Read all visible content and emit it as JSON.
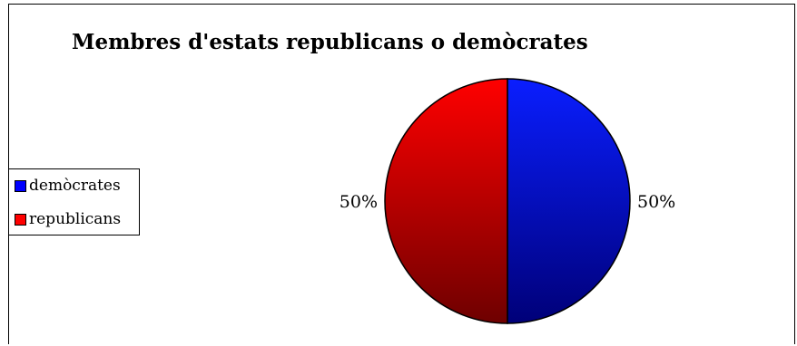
{
  "chart_data": {
    "type": "pie",
    "title": "Membres d'estats republicans o demòcrates",
    "categories": [
      "demòcrates",
      "republicans"
    ],
    "values": [
      50,
      50
    ],
    "data_labels": [
      "50%",
      "50%"
    ],
    "colors": [
      "#0000ff",
      "#ff0000"
    ],
    "legend_position": "left"
  }
}
